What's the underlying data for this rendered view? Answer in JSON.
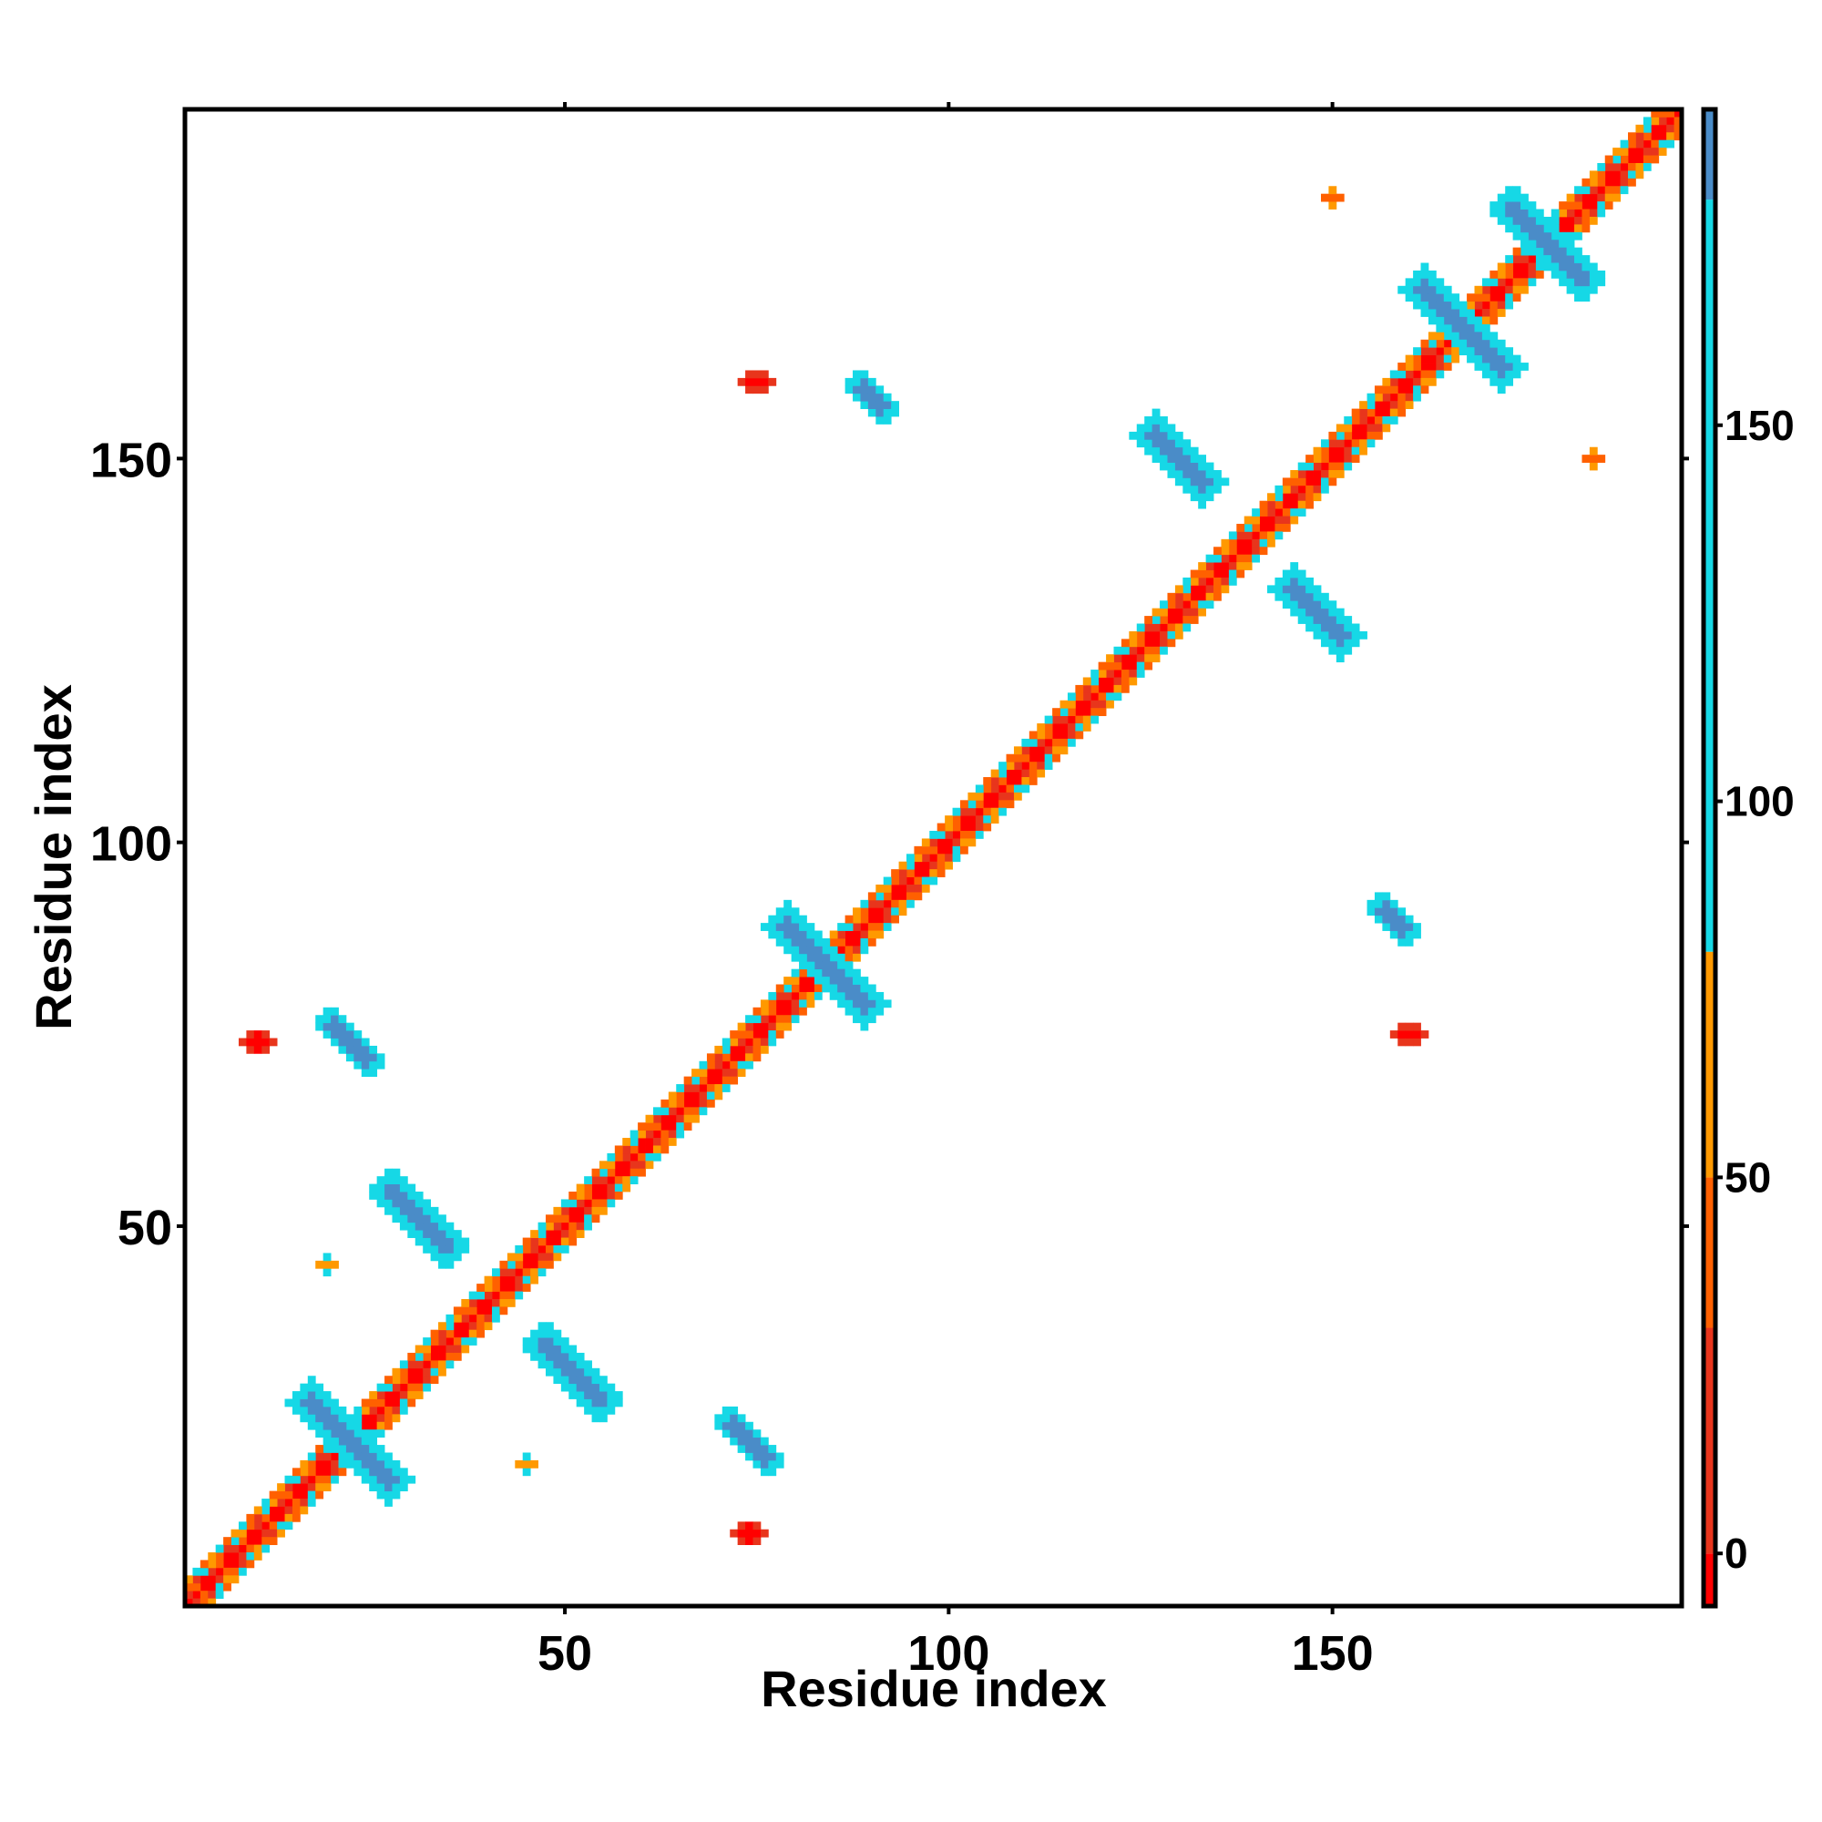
{
  "chart_data": {
    "type": "heatmap",
    "title": "",
    "xlabel": "Residue index",
    "ylabel": "Residue index",
    "xlim": [
      1,
      195
    ],
    "ylim": [
      1,
      195
    ],
    "x_ticks": [
      50,
      100,
      150
    ],
    "x_tick_labels": [
      "50",
      "100",
      "150"
    ],
    "y_ticks": [
      50,
      100,
      150
    ],
    "y_tick_labels": [
      "50",
      "100",
      "150"
    ],
    "grid": false,
    "colorbar": {
      "position": "right",
      "ticks": [
        0,
        50,
        100,
        150
      ],
      "tick_labels": [
        "0",
        "50",
        "100",
        "150"
      ],
      "range": [
        -7,
        192
      ],
      "bands": [
        {
          "from": -7,
          "to": 0,
          "color": "#ff0000"
        },
        {
          "from": 0,
          "to": 30,
          "color": "#e8351c"
        },
        {
          "from": 30,
          "to": 50,
          "color": "#ff6000"
        },
        {
          "from": 50,
          "to": 80,
          "color": "#ff9900"
        },
        {
          "from": 80,
          "to": 180,
          "color": "#16d8e6"
        },
        {
          "from": 180,
          "to": 192,
          "color": "#4a8cc8"
        }
      ]
    },
    "diagonal": {
      "start": 1,
      "end": 195,
      "value": -7
    },
    "near_diagonal_bands": [
      {
        "offset": 1,
        "values": [
          -5,
          20,
          40
        ]
      },
      {
        "offset": 2,
        "values": [
          20,
          40,
          60,
          90
        ]
      },
      {
        "offset": 3,
        "values": [
          40,
          60,
          90
        ]
      }
    ],
    "contact_features": [
      {
        "type": "antiparallel",
        "center": [
          22,
          22
        ],
        "length": 13,
        "width": 1.6,
        "value": 185
      },
      {
        "type": "antiparallel",
        "center": [
          31,
          51
        ],
        "length": 10,
        "width": 1.8,
        "value": 185
      },
      {
        "type": "antiparallel",
        "center": [
          51,
          31
        ],
        "length": 10,
        "width": 1.8,
        "value": 185
      },
      {
        "type": "antiparallel",
        "center": [
          84,
          84
        ],
        "length": 13,
        "width": 1.6,
        "value": 185
      },
      {
        "type": "antiparallel",
        "center": [
          130,
          150
        ],
        "length": 9,
        "width": 1.5,
        "value": 185
      },
      {
        "type": "antiparallel",
        "center": [
          148,
          130
        ],
        "length": 9,
        "width": 1.5,
        "value": 185
      },
      {
        "type": "antiparallel",
        "center": [
          167,
          167
        ],
        "length": 13,
        "width": 1.6,
        "value": 185
      },
      {
        "type": "antiparallel",
        "center": [
          178,
          178
        ],
        "length": 12,
        "width": 1.6,
        "value": 185
      },
      {
        "type": "antiparallel",
        "center": [
          22,
          74
        ],
        "length": 7,
        "width": 1.2,
        "value": 185
      },
      {
        "type": "antiparallel",
        "center": [
          74,
          22
        ],
        "length": 7,
        "width": 1.2,
        "value": 185
      },
      {
        "type": "antiparallel",
        "center": [
          90,
          158
        ],
        "length": 5,
        "width": 1.0,
        "value": 185
      },
      {
        "type": "antiparallel",
        "center": [
          158,
          90
        ],
        "length": 5,
        "width": 1.0,
        "value": 185
      },
      {
        "type": "cluster",
        "center": [
          74,
          10
        ],
        "rx": 2.5,
        "ry": 1.5,
        "value": -5
      },
      {
        "type": "cluster",
        "center": [
          10,
          74
        ],
        "rx": 2.5,
        "ry": 1.5,
        "value": -5
      },
      {
        "type": "cluster",
        "center": [
          160,
          75
        ],
        "rx": 2.0,
        "ry": 1.2,
        "value": -5
      },
      {
        "type": "cluster",
        "center": [
          75,
          160
        ],
        "rx": 2.0,
        "ry": 1.2,
        "value": -5
      },
      {
        "type": "cluster",
        "center": [
          184,
          150
        ],
        "rx": 1.5,
        "ry": 1.0,
        "value": 40
      },
      {
        "type": "cluster",
        "center": [
          150,
          184
        ],
        "rx": 1.5,
        "ry": 1.0,
        "value": 40
      },
      {
        "type": "cluster",
        "center": [
          45,
          19
        ],
        "rx": 1.5,
        "ry": 1.0,
        "value": 60
      },
      {
        "type": "cluster",
        "center": [
          19,
          45
        ],
        "rx": 1.5,
        "ry": 1.0,
        "value": 60
      }
    ]
  }
}
